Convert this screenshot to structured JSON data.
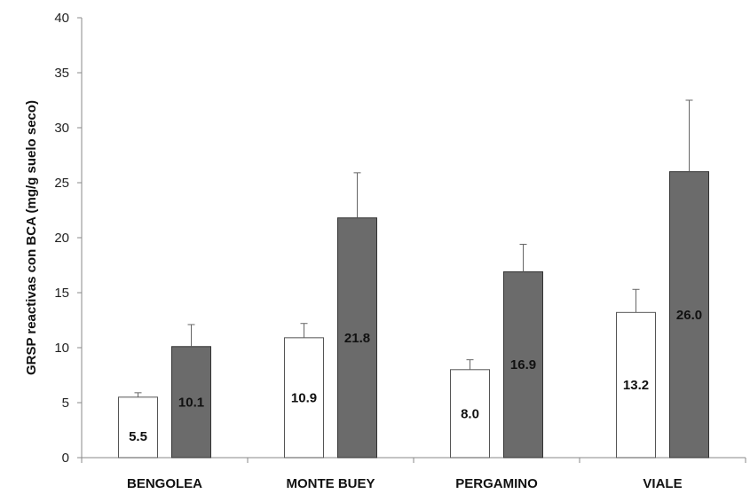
{
  "chart_data": {
    "type": "bar",
    "categories": [
      "BENGOLEA",
      "MONTE BUEY",
      "PERGAMINO",
      "VIALE"
    ],
    "series": [
      {
        "values": [
          5.5,
          10.9,
          8.0,
          13.2
        ],
        "errors": [
          0.4,
          1.3,
          0.9,
          2.1
        ],
        "color": "#ffffff",
        "stroke": "#555555"
      },
      {
        "values": [
          10.1,
          21.8,
          16.9,
          26.0
        ],
        "errors": [
          2.0,
          4.1,
          2.5,
          6.5
        ],
        "color": "#6b6b6b",
        "stroke": "#333333"
      }
    ],
    "data_labels": [
      [
        "5.5",
        "10.1"
      ],
      [
        "10.9",
        "21.8"
      ],
      [
        "8.0",
        "16.9"
      ],
      [
        "13.2",
        "26.0"
      ]
    ],
    "yticks": [
      0,
      5,
      10,
      15,
      20,
      25,
      30,
      35,
      40
    ],
    "ylim": [
      0,
      40
    ],
    "ylabel": "GRSP reactivas con BCA (mg/g suelo seco)",
    "xlabel": "",
    "title": "",
    "grid": false,
    "legend": "none"
  }
}
